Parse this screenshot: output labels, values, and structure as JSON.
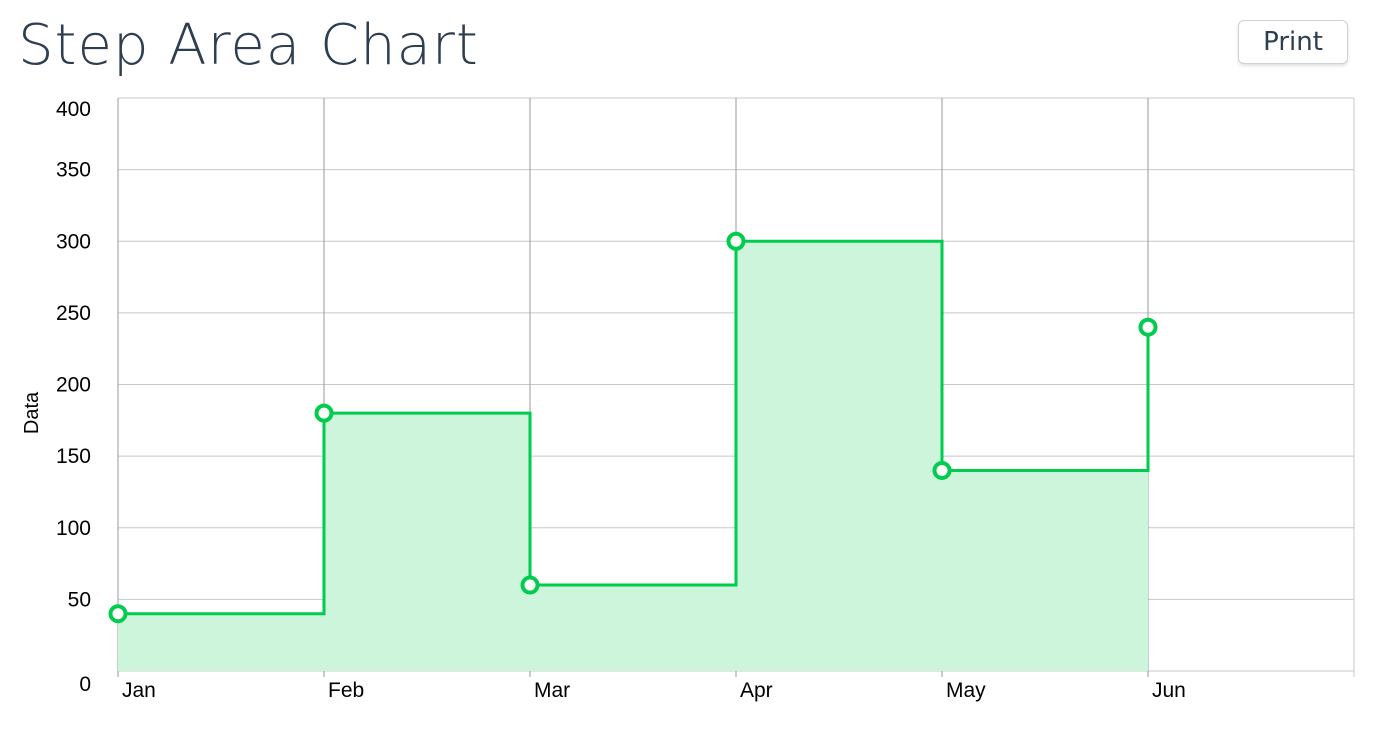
{
  "header": {
    "title": "Step Area Chart",
    "print_label": "Print"
  },
  "colors": {
    "line": "#00cc4e",
    "fill": "#ccf5dc",
    "grid": "#c8c8c8",
    "vgrid": "#9a9a9a"
  },
  "chart_data": {
    "type": "area",
    "step": true,
    "title": "Step Area Chart",
    "xlabel": "",
    "ylabel": "Data",
    "categories": [
      "Jan",
      "Feb",
      "Mar",
      "Apr",
      "May",
      "Jun"
    ],
    "values": [
      40,
      180,
      60,
      300,
      140,
      240
    ],
    "ylim": [
      0,
      400
    ],
    "yticks": [
      0,
      50,
      100,
      150,
      200,
      250,
      300,
      350,
      400
    ],
    "grid": true,
    "legend": "none"
  }
}
